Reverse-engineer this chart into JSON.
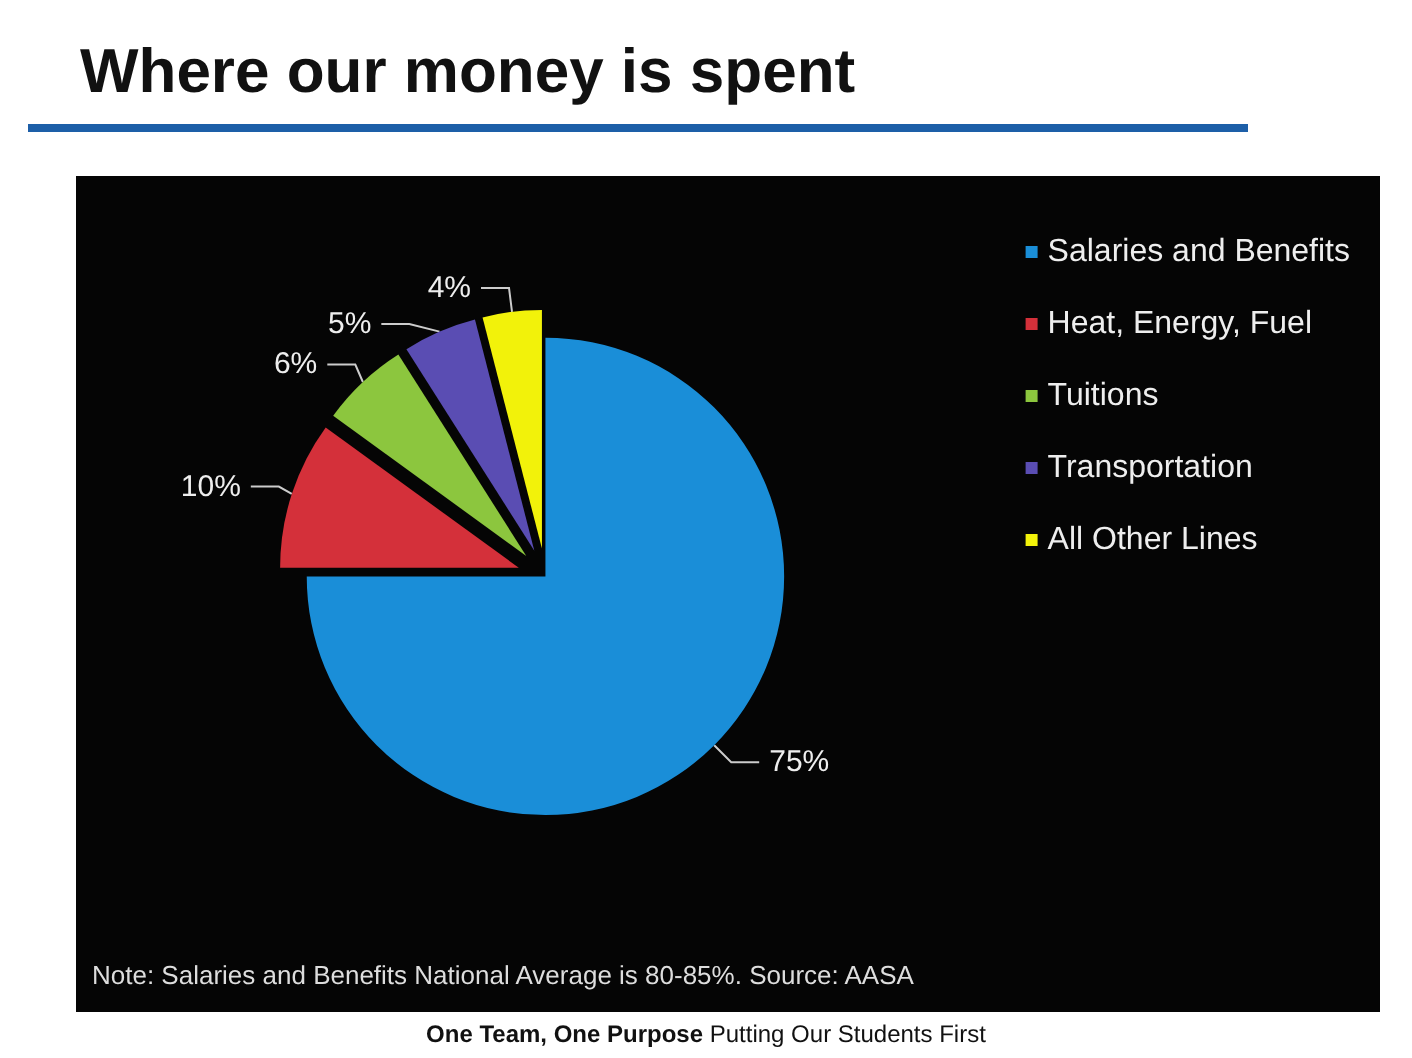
{
  "chart_data": {
    "type": "pie",
    "title": "Where our money is spent",
    "categories": [
      "Salaries and Benefits",
      "Heat, Energy, Fuel",
      "Tuitions",
      "Transportation",
      "All Other Lines"
    ],
    "values": [
      75,
      10,
      6,
      5,
      4
    ],
    "value_labels": [
      "75%",
      "10%",
      "6%",
      "5%",
      "4%"
    ],
    "colors": [
      "#1a8ed8",
      "#d4303a",
      "#8cc63e",
      "#5a4db3",
      "#f2f20a"
    ],
    "legend": "right",
    "annotations": [
      "Note: Salaries and Benefits National Average is 80-85%. Source: AASA",
      "One Team, One Purpose  Putting Our Students First"
    ]
  }
}
